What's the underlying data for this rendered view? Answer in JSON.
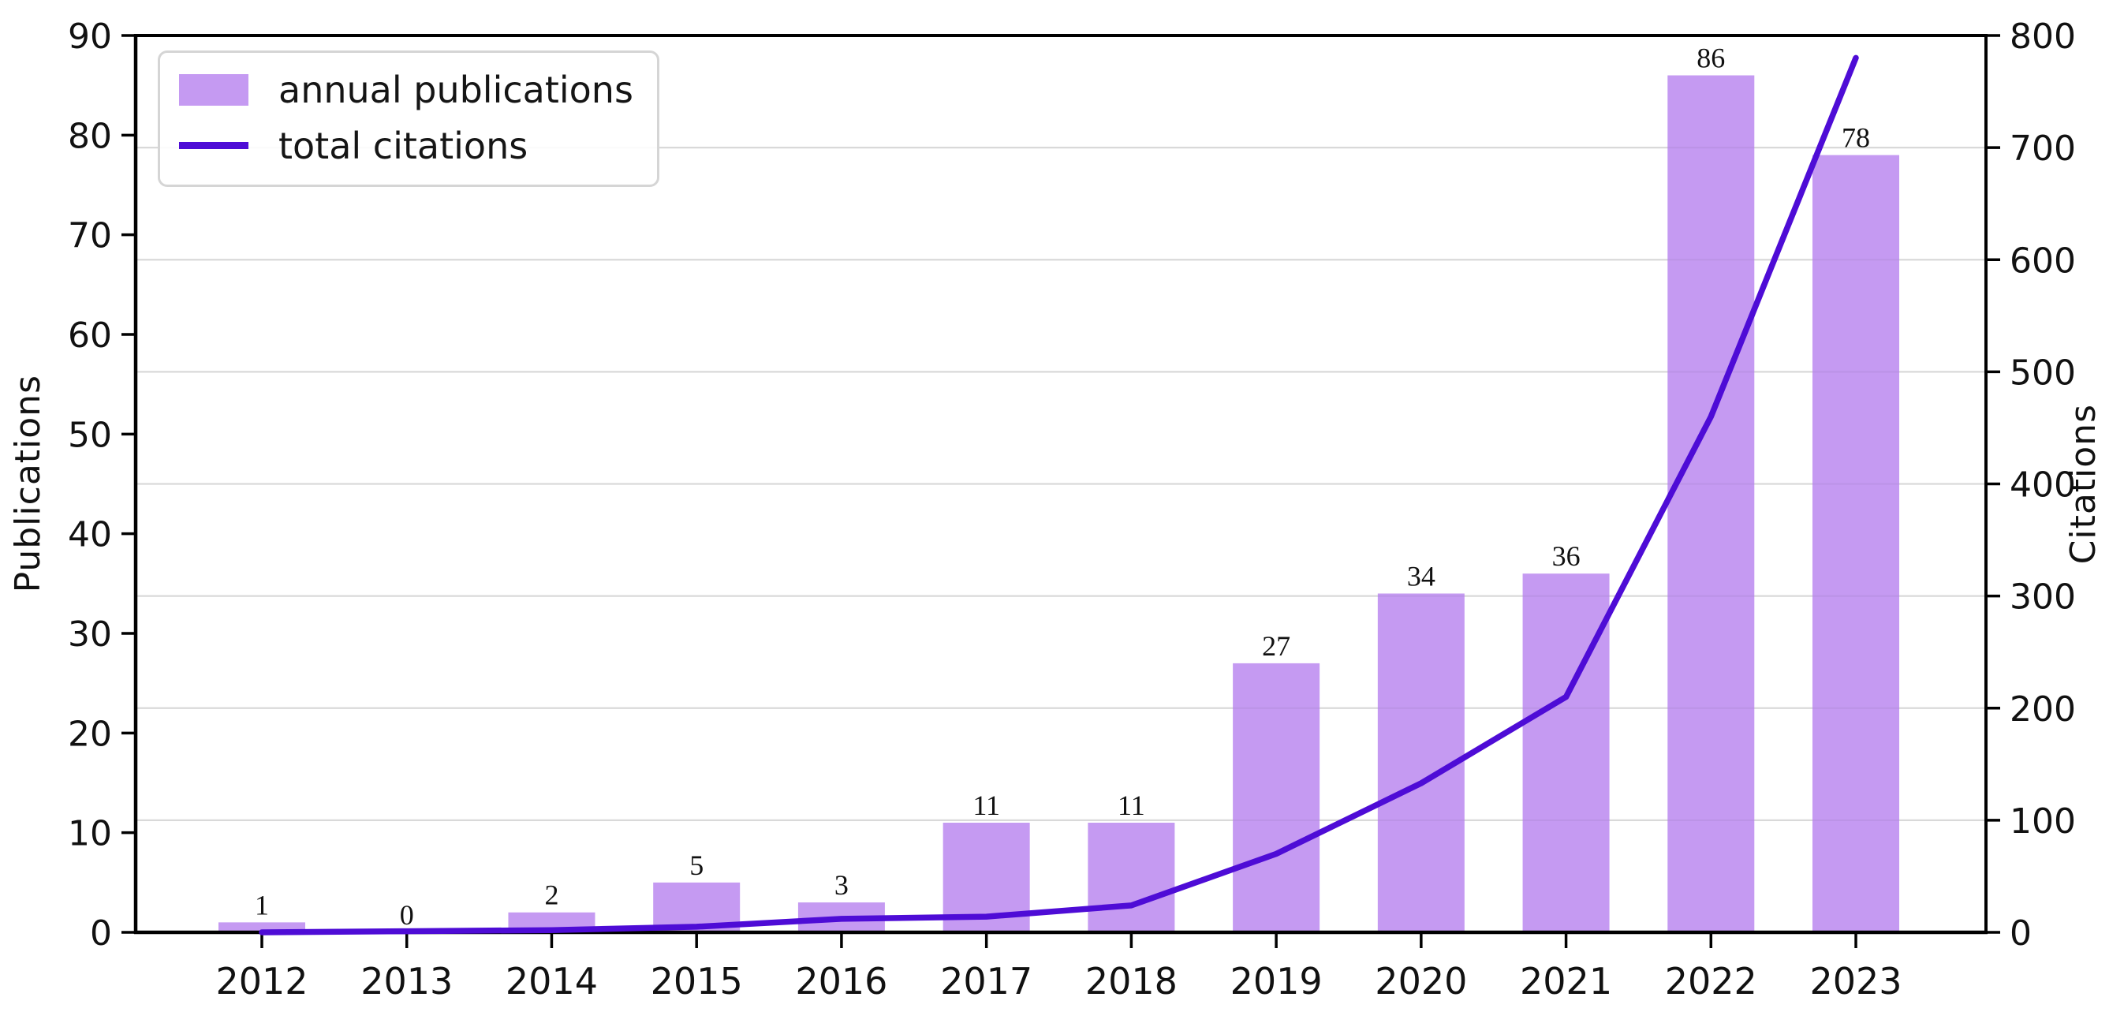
{
  "figure": {
    "background": "#ffffff"
  },
  "chart_data": {
    "type": "bar+line",
    "categories": [
      "2012",
      "2013",
      "2014",
      "2015",
      "2016",
      "2017",
      "2018",
      "2019",
      "2020",
      "2021",
      "2022",
      "2023"
    ],
    "series": [
      {
        "name": "annual publications",
        "type": "bar",
        "axis": "left",
        "values": [
          1,
          0,
          2,
          5,
          3,
          11,
          11,
          27,
          34,
          36,
          86,
          78
        ]
      },
      {
        "name": "total citations",
        "type": "line",
        "axis": "right",
        "values": [
          0,
          1,
          2,
          5,
          12,
          14,
          24,
          70,
          133,
          210,
          460,
          780
        ]
      }
    ],
    "bar_value_labels": [
      "1",
      "0",
      "2",
      "5",
      "3",
      "11",
      "11",
      "27",
      "34",
      "36",
      "86",
      "78"
    ],
    "xlabel": "",
    "ylabel_left": "Publications",
    "ylabel_right": "Citations",
    "ylim_left": [
      0,
      90
    ],
    "ylim_right": [
      0,
      800
    ],
    "yticks_left": [
      0,
      10,
      20,
      30,
      40,
      50,
      60,
      70,
      80,
      90
    ],
    "yticks_right": [
      0,
      100,
      200,
      300,
      400,
      500,
      600,
      700,
      800
    ],
    "grid": "horizontal gridlines at right-axis tick positions",
    "legend_position": "upper left",
    "colors": {
      "bar": "#c59af2",
      "line": "#4e0cd6",
      "grid": "#e3e3e3",
      "axis": "#000000",
      "text": "#111111",
      "legend_border": "#d5d5d5"
    }
  }
}
